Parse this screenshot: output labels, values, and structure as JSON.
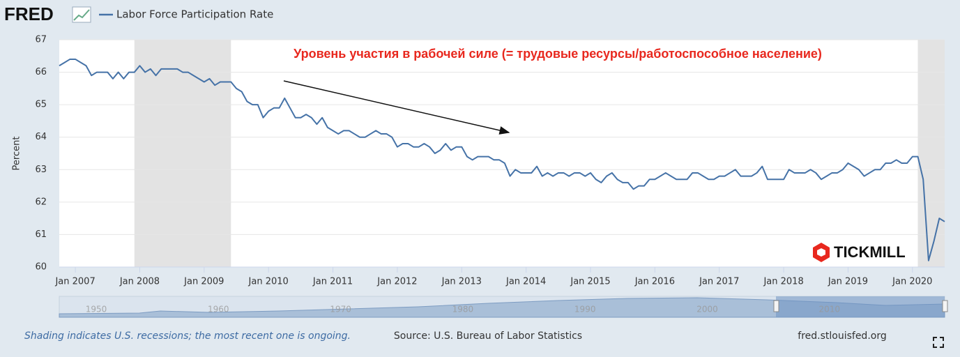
{
  "header": {
    "logo": "FRED"
  },
  "chart_data": {
    "type": "line",
    "y_label": "Percent",
    "annotation": "Уровень участия в рабочей силе (= трудовые ресурсы/работоспособное население)",
    "x": [
      "2006-10",
      "2006-11",
      "2006-12",
      "2007-01",
      "2007-02",
      "2007-03",
      "2007-04",
      "2007-05",
      "2007-06",
      "2007-07",
      "2007-08",
      "2007-09",
      "2007-10",
      "2007-11",
      "2007-12",
      "2008-01",
      "2008-02",
      "2008-03",
      "2008-04",
      "2008-05",
      "2008-06",
      "2008-07",
      "2008-08",
      "2008-09",
      "2008-10",
      "2008-11",
      "2008-12",
      "2009-01",
      "2009-02",
      "2009-03",
      "2009-04",
      "2009-05",
      "2009-06",
      "2009-07",
      "2009-08",
      "2009-09",
      "2009-10",
      "2009-11",
      "2009-12",
      "2010-01",
      "2010-02",
      "2010-03",
      "2010-04",
      "2010-05",
      "2010-06",
      "2010-07",
      "2010-08",
      "2010-09",
      "2010-10",
      "2010-11",
      "2010-12",
      "2011-01",
      "2011-02",
      "2011-03",
      "2011-04",
      "2011-05",
      "2011-06",
      "2011-07",
      "2011-08",
      "2011-09",
      "2011-10",
      "2011-11",
      "2011-12",
      "2012-01",
      "2012-02",
      "2012-03",
      "2012-04",
      "2012-05",
      "2012-06",
      "2012-07",
      "2012-08",
      "2012-09",
      "2012-10",
      "2012-11",
      "2012-12",
      "2013-01",
      "2013-02",
      "2013-03",
      "2013-04",
      "2013-05",
      "2013-06",
      "2013-07",
      "2013-08",
      "2013-09",
      "2013-10",
      "2013-11",
      "2013-12",
      "2014-01",
      "2014-02",
      "2014-03",
      "2014-04",
      "2014-05",
      "2014-06",
      "2014-07",
      "2014-08",
      "2014-09",
      "2014-10",
      "2014-11",
      "2014-12",
      "2015-01",
      "2015-02",
      "2015-03",
      "2015-04",
      "2015-05",
      "2015-06",
      "2015-07",
      "2015-08",
      "2015-09",
      "2015-10",
      "2015-11",
      "2015-12",
      "2016-01",
      "2016-02",
      "2016-03",
      "2016-04",
      "2016-05",
      "2016-06",
      "2016-07",
      "2016-08",
      "2016-09",
      "2016-10",
      "2016-11",
      "2016-12",
      "2017-01",
      "2017-02",
      "2017-03",
      "2017-04",
      "2017-05",
      "2017-06",
      "2017-07",
      "2017-08",
      "2017-09",
      "2017-10",
      "2017-11",
      "2017-12",
      "2018-01",
      "2018-02",
      "2018-03",
      "2018-04",
      "2018-05",
      "2018-06",
      "2018-07",
      "2018-08",
      "2018-09",
      "2018-10",
      "2018-11",
      "2018-12",
      "2019-01",
      "2019-02",
      "2019-03",
      "2019-04",
      "2019-05",
      "2019-06",
      "2019-07",
      "2019-08",
      "2019-09",
      "2019-10",
      "2019-11",
      "2019-12",
      "2020-01",
      "2020-02",
      "2020-03",
      "2020-04",
      "2020-05",
      "2020-06",
      "2020-07"
    ],
    "series": [
      {
        "name": "Labor Force Participation Rate",
        "color": "#4572a7",
        "values": [
          66.2,
          66.3,
          66.4,
          66.4,
          66.3,
          66.2,
          65.9,
          66.0,
          66.0,
          66.0,
          65.8,
          66.0,
          65.8,
          66.0,
          66.0,
          66.2,
          66.0,
          66.1,
          65.9,
          66.1,
          66.1,
          66.1,
          66.1,
          66.0,
          66.0,
          65.9,
          65.8,
          65.7,
          65.8,
          65.6,
          65.7,
          65.7,
          65.7,
          65.5,
          65.4,
          65.1,
          65.0,
          65.0,
          64.6,
          64.8,
          64.9,
          64.9,
          65.2,
          64.9,
          64.6,
          64.6,
          64.7,
          64.6,
          64.4,
          64.6,
          64.3,
          64.2,
          64.1,
          64.2,
          64.2,
          64.1,
          64.0,
          64.0,
          64.1,
          64.2,
          64.1,
          64.1,
          64.0,
          63.7,
          63.8,
          63.8,
          63.7,
          63.7,
          63.8,
          63.7,
          63.5,
          63.6,
          63.8,
          63.6,
          63.7,
          63.7,
          63.4,
          63.3,
          63.4,
          63.4,
          63.4,
          63.3,
          63.3,
          63.2,
          62.8,
          63.0,
          62.9,
          62.9,
          62.9,
          63.1,
          62.8,
          62.9,
          62.8,
          62.9,
          62.9,
          62.8,
          62.9,
          62.9,
          62.8,
          62.9,
          62.7,
          62.6,
          62.8,
          62.9,
          62.7,
          62.6,
          62.6,
          62.4,
          62.5,
          62.5,
          62.7,
          62.7,
          62.8,
          62.9,
          62.8,
          62.7,
          62.7,
          62.7,
          62.9,
          62.9,
          62.8,
          62.7,
          62.7,
          62.8,
          62.8,
          62.9,
          63.0,
          62.8,
          62.8,
          62.8,
          62.9,
          63.1,
          62.7,
          62.7,
          62.7,
          62.7,
          63.0,
          62.9,
          62.9,
          62.9,
          63.0,
          62.9,
          62.7,
          62.8,
          62.9,
          62.9,
          63.0,
          63.2,
          63.1,
          63.0,
          62.8,
          62.9,
          63.0,
          63.0,
          63.2,
          63.2,
          63.3,
          63.2,
          63.2,
          63.4,
          63.4,
          62.7,
          60.2,
          60.8,
          61.5,
          61.4
        ]
      }
    ],
    "xlim": [
      "2006-10",
      "2020-07"
    ],
    "xticks": [
      {
        "value": "2007-01",
        "label": "Jan 2007"
      },
      {
        "value": "2008-01",
        "label": "Jan 2008"
      },
      {
        "value": "2009-01",
        "label": "Jan 2009"
      },
      {
        "value": "2010-01",
        "label": "Jan 2010"
      },
      {
        "value": "2011-01",
        "label": "Jan 2011"
      },
      {
        "value": "2012-01",
        "label": "Jan 2012"
      },
      {
        "value": "2013-01",
        "label": "Jan 2013"
      },
      {
        "value": "2014-01",
        "label": "Jan 2014"
      },
      {
        "value": "2015-01",
        "label": "Jan 2015"
      },
      {
        "value": "2016-01",
        "label": "Jan 2016"
      },
      {
        "value": "2017-01",
        "label": "Jan 2017"
      },
      {
        "value": "2018-01",
        "label": "Jan 2018"
      },
      {
        "value": "2019-01",
        "label": "Jan 2019"
      },
      {
        "value": "2020-01",
        "label": "Jan 2020"
      }
    ],
    "ylim": [
      60,
      67
    ],
    "yticks": [
      60,
      61,
      62,
      63,
      64,
      65,
      66,
      67
    ],
    "grid": true,
    "recessions": [
      {
        "start": "2007-12",
        "end": "2009-06"
      },
      {
        "start": "2020-02",
        "end": "2020-07"
      }
    ]
  },
  "navigator": {
    "labels": [
      "1950",
      "1960",
      "1970",
      "1980",
      "1990",
      "2000",
      "2010"
    ]
  },
  "watermark": "TICKMILL",
  "footer": {
    "note": "Shading indicates U.S. recessions; the most recent one is ongoing.",
    "source": "Source: U.S. Bureau of Labor Statistics",
    "url": "fred.stlouisfed.org"
  }
}
